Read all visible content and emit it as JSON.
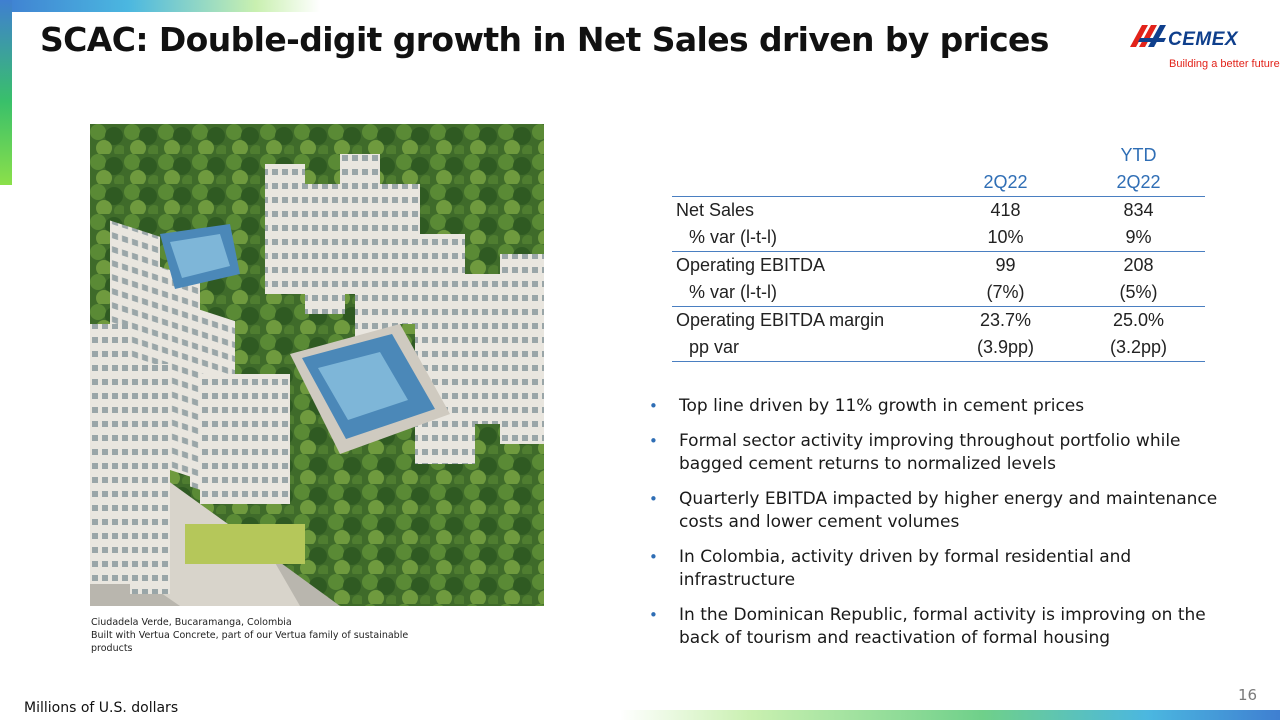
{
  "title": "SCAC: Double-digit growth in Net Sales driven by prices",
  "logo": {
    "word": "CEMEX",
    "tagline": "Building a better future"
  },
  "caption": {
    "line1": "Ciudadela Verde, Bucaramanga, Colombia",
    "line2": "Built with Vertua Concrete, part of our Vertua family of sustainable",
    "line3": "products"
  },
  "table": {
    "col1_header": "2Q22",
    "col2_header_top": "YTD",
    "col2_header_bottom": "2Q22",
    "rows": [
      {
        "label": "Net Sales",
        "v1": "418",
        "v2": "834"
      },
      {
        "label": "% var (l-t-l)",
        "v1": "10%",
        "v2": "9%"
      },
      {
        "label": "Operating EBITDA",
        "v1": "99",
        "v2": "208"
      },
      {
        "label": "% var (l-t-l)",
        "v1": "(7%)",
        "v2": "(5%)"
      },
      {
        "label": "Operating EBITDA margin",
        "v1": "23.7%",
        "v2": "25.0%"
      },
      {
        "label": "pp var",
        "v1": "(3.9pp)",
        "v2": "(3.2pp)"
      }
    ]
  },
  "bullets": [
    {
      "line1": "Top line driven by 11% growth in cement prices",
      "line2": ""
    },
    {
      "line1": "Formal sector activity improving throughout portfolio while",
      "line2": "bagged cement returns to normalized levels"
    },
    {
      "line1": "Quarterly EBITDA impacted by higher energy and maintenance",
      "line2": "costs and lower cement volumes"
    },
    {
      "line1": "In Colombia, activity driven by formal residential and",
      "line2": "infrastructure"
    },
    {
      "line1": "In the Dominican Republic, formal activity is improving on the",
      "line2": "back of tourism and reactivation of formal housing"
    }
  ],
  "page_number": "16",
  "footnote": "Millions of U.S. dollars",
  "colors": {
    "accent_blue": "#2f6eb5",
    "logo_blue": "#0f3f8c",
    "logo_red": "#e2231a"
  }
}
